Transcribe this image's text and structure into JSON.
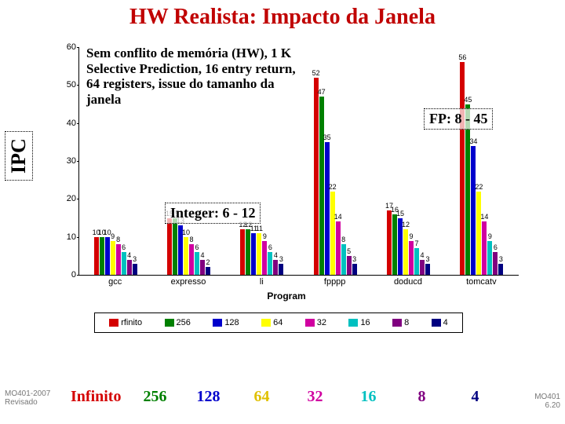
{
  "title_color": "#c00000",
  "title": "HW Realista: Impacto da Janela",
  "y_axis_label": "IPC",
  "x_axis_label": "Program",
  "chart": {
    "ymax": 60,
    "yticks": [
      0,
      10,
      20,
      30,
      40,
      50,
      60
    ],
    "series": [
      {
        "name": "rfinito",
        "color": "#d40000"
      },
      {
        "name": "256",
        "color": "#008000"
      },
      {
        "name": "128",
        "color": "#0000cc"
      },
      {
        "name": "64",
        "color": "#ffff00"
      },
      {
        "name": "32",
        "color": "#d000a0"
      },
      {
        "name": "16",
        "color": "#00c0c0"
      },
      {
        "name": "8",
        "color": "#800080"
      },
      {
        "name": "4",
        "color": "#000080"
      }
    ],
    "categories": [
      {
        "label": "gcc",
        "values": [
          10,
          10,
          10,
          9,
          8,
          6,
          4,
          3
        ]
      },
      {
        "label": "expresso",
        "values": [
          15,
          15,
          13,
          10,
          8,
          6,
          4,
          2
        ]
      },
      {
        "label": "li",
        "values": [
          12,
          12,
          11,
          11,
          9,
          6,
          4,
          3
        ]
      },
      {
        "label": "fpppp",
        "values": [
          52,
          47,
          35,
          22,
          14,
          8,
          5,
          3
        ]
      },
      {
        "label": "doducd",
        "values": [
          17,
          16,
          15,
          12,
          9,
          7,
          4,
          3
        ]
      },
      {
        "label": "tomcatv",
        "values": [
          56,
          45,
          34,
          22,
          14,
          9,
          6,
          3
        ]
      }
    ]
  },
  "annotations": {
    "desc": "Sem conflito de memória (HW), 1 K Selective Prediction, 16 entry return, 64 registers, issue do tamanho da janela",
    "integer": "Integer: 6 - 12",
    "fp": "FP: 8 - 45"
  },
  "color_row": [
    {
      "text": "Infinito",
      "color": "#d40000"
    },
    {
      "text": "256",
      "color": "#008000"
    },
    {
      "text": "128",
      "color": "#0000cc"
    },
    {
      "text": "64",
      "color": "#e0c000"
    },
    {
      "text": "32",
      "color": "#d000a0"
    },
    {
      "text": "16",
      "color": "#00c0c0"
    },
    {
      "text": "8",
      "color": "#800080"
    },
    {
      "text": "4",
      "color": "#000080"
    }
  ],
  "footer_left_a": "MO401-2007",
  "footer_left_b": "Revisado",
  "footer_right_a": "MO401",
  "footer_right_b": "6.20"
}
